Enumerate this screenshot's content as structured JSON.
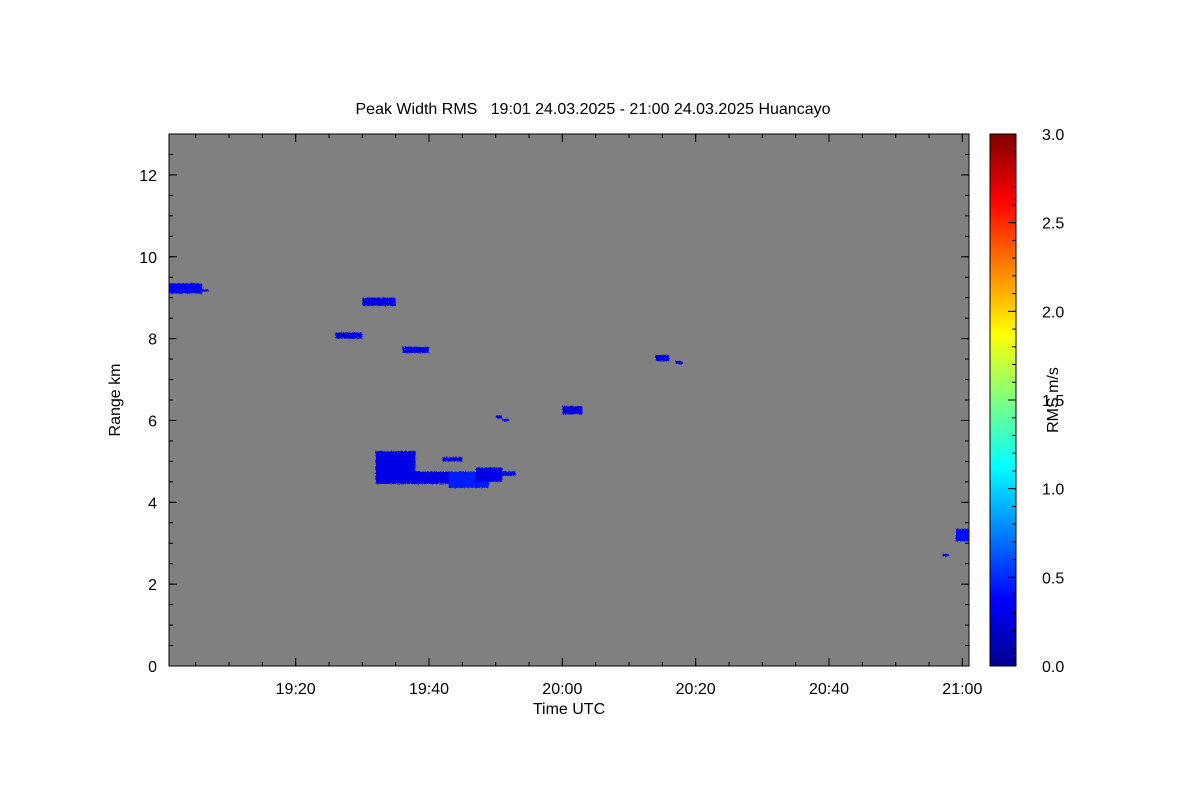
{
  "chart_data": {
    "type": "heatmap",
    "title": "Peak Width RMS   19:01 24.03.2025 - 21:00 24.03.2025 Huancayo",
    "xlabel": "Time UTC",
    "ylabel": "Range km",
    "background_color": "#808080",
    "xlim": [
      "19:01",
      "21:01"
    ],
    "x_ticks": [
      "19:20",
      "19:40",
      "20:00",
      "20:20",
      "20:40",
      "21:00"
    ],
    "ylim": [
      0,
      13
    ],
    "y_ticks": [
      "0",
      "2",
      "4",
      "6",
      "8",
      "10",
      "12"
    ],
    "colorbar": {
      "label": "RMS m/s",
      "range": [
        0.0,
        3.0
      ],
      "ticks": [
        "0.0",
        "0.5",
        "1.0",
        "1.5",
        "2.0",
        "2.5",
        "3.0"
      ],
      "colormap": "jet"
    },
    "echoes": [
      {
        "t_start": "19:01",
        "t_end": "19:05",
        "range_low": 9.1,
        "range_high": 9.35,
        "rms": 0.35
      },
      {
        "t_start": "19:06",
        "t_end": "19:06",
        "range_low": 9.15,
        "range_high": 9.2,
        "rms": 0.35
      },
      {
        "t_start": "19:30",
        "t_end": "19:34",
        "range_low": 8.8,
        "range_high": 9.0,
        "rms": 0.3
      },
      {
        "t_start": "19:26",
        "t_end": "19:29",
        "range_low": 8.0,
        "range_high": 8.15,
        "rms": 0.3
      },
      {
        "t_start": "19:36",
        "t_end": "19:39",
        "range_low": 7.65,
        "range_high": 7.8,
        "rms": 0.3
      },
      {
        "t_start": "19:32",
        "t_end": "19:37",
        "range_low": 4.45,
        "range_high": 5.25,
        "rms": 0.3
      },
      {
        "t_start": "19:37",
        "t_end": "19:43",
        "range_low": 4.45,
        "range_high": 4.75,
        "rms": 0.3
      },
      {
        "t_start": "19:43",
        "t_end": "19:48",
        "range_low": 4.35,
        "range_high": 4.75,
        "rms": 0.45
      },
      {
        "t_start": "19:47",
        "t_end": "19:50",
        "range_low": 4.5,
        "range_high": 4.85,
        "rms": 0.3
      },
      {
        "t_start": "19:42",
        "t_end": "19:44",
        "range_low": 5.0,
        "range_high": 5.1,
        "rms": 0.3
      },
      {
        "t_start": "19:51",
        "t_end": "19:52",
        "range_low": 4.65,
        "range_high": 4.75,
        "rms": 0.35
      },
      {
        "t_start": "19:50",
        "t_end": "19:50",
        "range_low": 6.05,
        "range_high": 6.12,
        "rms": 0.3
      },
      {
        "t_start": "19:51",
        "t_end": "19:51",
        "range_low": 5.98,
        "range_high": 6.04,
        "rms": 0.3
      },
      {
        "t_start": "20:00",
        "t_end": "20:02",
        "range_low": 6.15,
        "range_high": 6.35,
        "rms": 0.3
      },
      {
        "t_start": "20:14",
        "t_end": "20:15",
        "range_low": 7.45,
        "range_high": 7.6,
        "rms": 0.3
      },
      {
        "t_start": "20:17",
        "t_end": "20:17",
        "range_low": 7.38,
        "range_high": 7.45,
        "rms": 0.3
      },
      {
        "t_start": "20:59",
        "t_end": "21:00",
        "range_low": 3.05,
        "range_high": 3.35,
        "rms": 0.4
      },
      {
        "t_start": "20:57",
        "t_end": "20:57",
        "range_low": 2.68,
        "range_high": 2.74,
        "rms": 0.3
      }
    ]
  }
}
